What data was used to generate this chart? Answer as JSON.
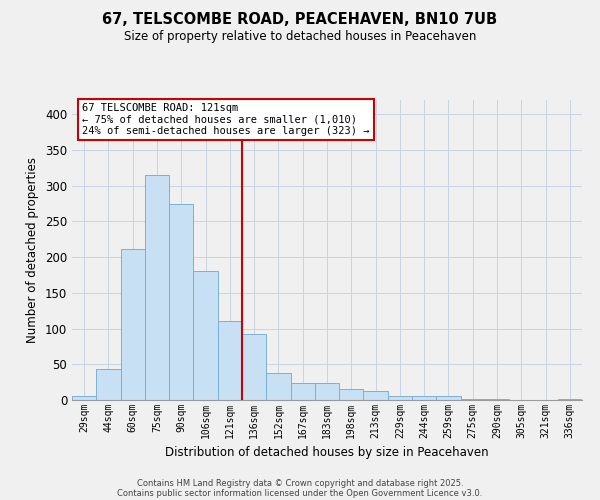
{
  "title1": "67, TELSCOMBE ROAD, PEACEHAVEN, BN10 7UB",
  "title2": "Size of property relative to detached houses in Peacehaven",
  "xlabel": "Distribution of detached houses by size in Peacehaven",
  "ylabel": "Number of detached properties",
  "bar_labels": [
    "29sqm",
    "44sqm",
    "60sqm",
    "75sqm",
    "90sqm",
    "106sqm",
    "121sqm",
    "136sqm",
    "152sqm",
    "167sqm",
    "183sqm",
    "198sqm",
    "213sqm",
    "229sqm",
    "244sqm",
    "259sqm",
    "275sqm",
    "290sqm",
    "305sqm",
    "321sqm",
    "336sqm"
  ],
  "bar_values": [
    5,
    44,
    212,
    315,
    275,
    180,
    110,
    93,
    38,
    24,
    24,
    16,
    13,
    5,
    5,
    5,
    2,
    1,
    0,
    0,
    2
  ],
  "bar_color": "#c8e0f4",
  "bar_edge_color": "#7ab0d8",
  "vline_color": "#cc0000",
  "annotation_title": "67 TELSCOMBE ROAD: 121sqm",
  "annotation_line1": "← 75% of detached houses are smaller (1,010)",
  "annotation_line2": "24% of semi-detached houses are larger (323) →",
  "annotation_box_color": "#ffffff",
  "annotation_box_edge": "#cc0000",
  "ylim": [
    0,
    420
  ],
  "yticks": [
    0,
    50,
    100,
    150,
    200,
    250,
    300,
    350,
    400
  ],
  "footer1": "Contains HM Land Registry data © Crown copyright and database right 2025.",
  "footer2": "Contains public sector information licensed under the Open Government Licence v3.0.",
  "bg_color": "#f0f0f0",
  "grid_color": "#c8d4e0"
}
